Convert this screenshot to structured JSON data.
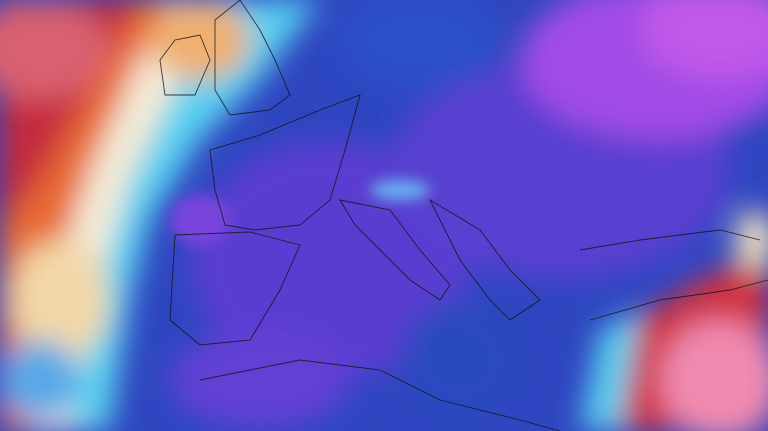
{
  "map": {
    "type": "temperature-anomaly-field",
    "colors": {
      "deep_red": "#a8203c",
      "red": "#d8383a",
      "orange": "#e8702c",
      "pale_yellow": "#f4e4b8",
      "white": "#f4f4f4",
      "cyan": "#58d0f0",
      "light_blue": "#3a90e0",
      "blue": "#2448c0",
      "purple": "#5a3ed0",
      "violet": "#8048e0",
      "magenta": "#c058e8",
      "pink": "#e87aa8"
    }
  }
}
